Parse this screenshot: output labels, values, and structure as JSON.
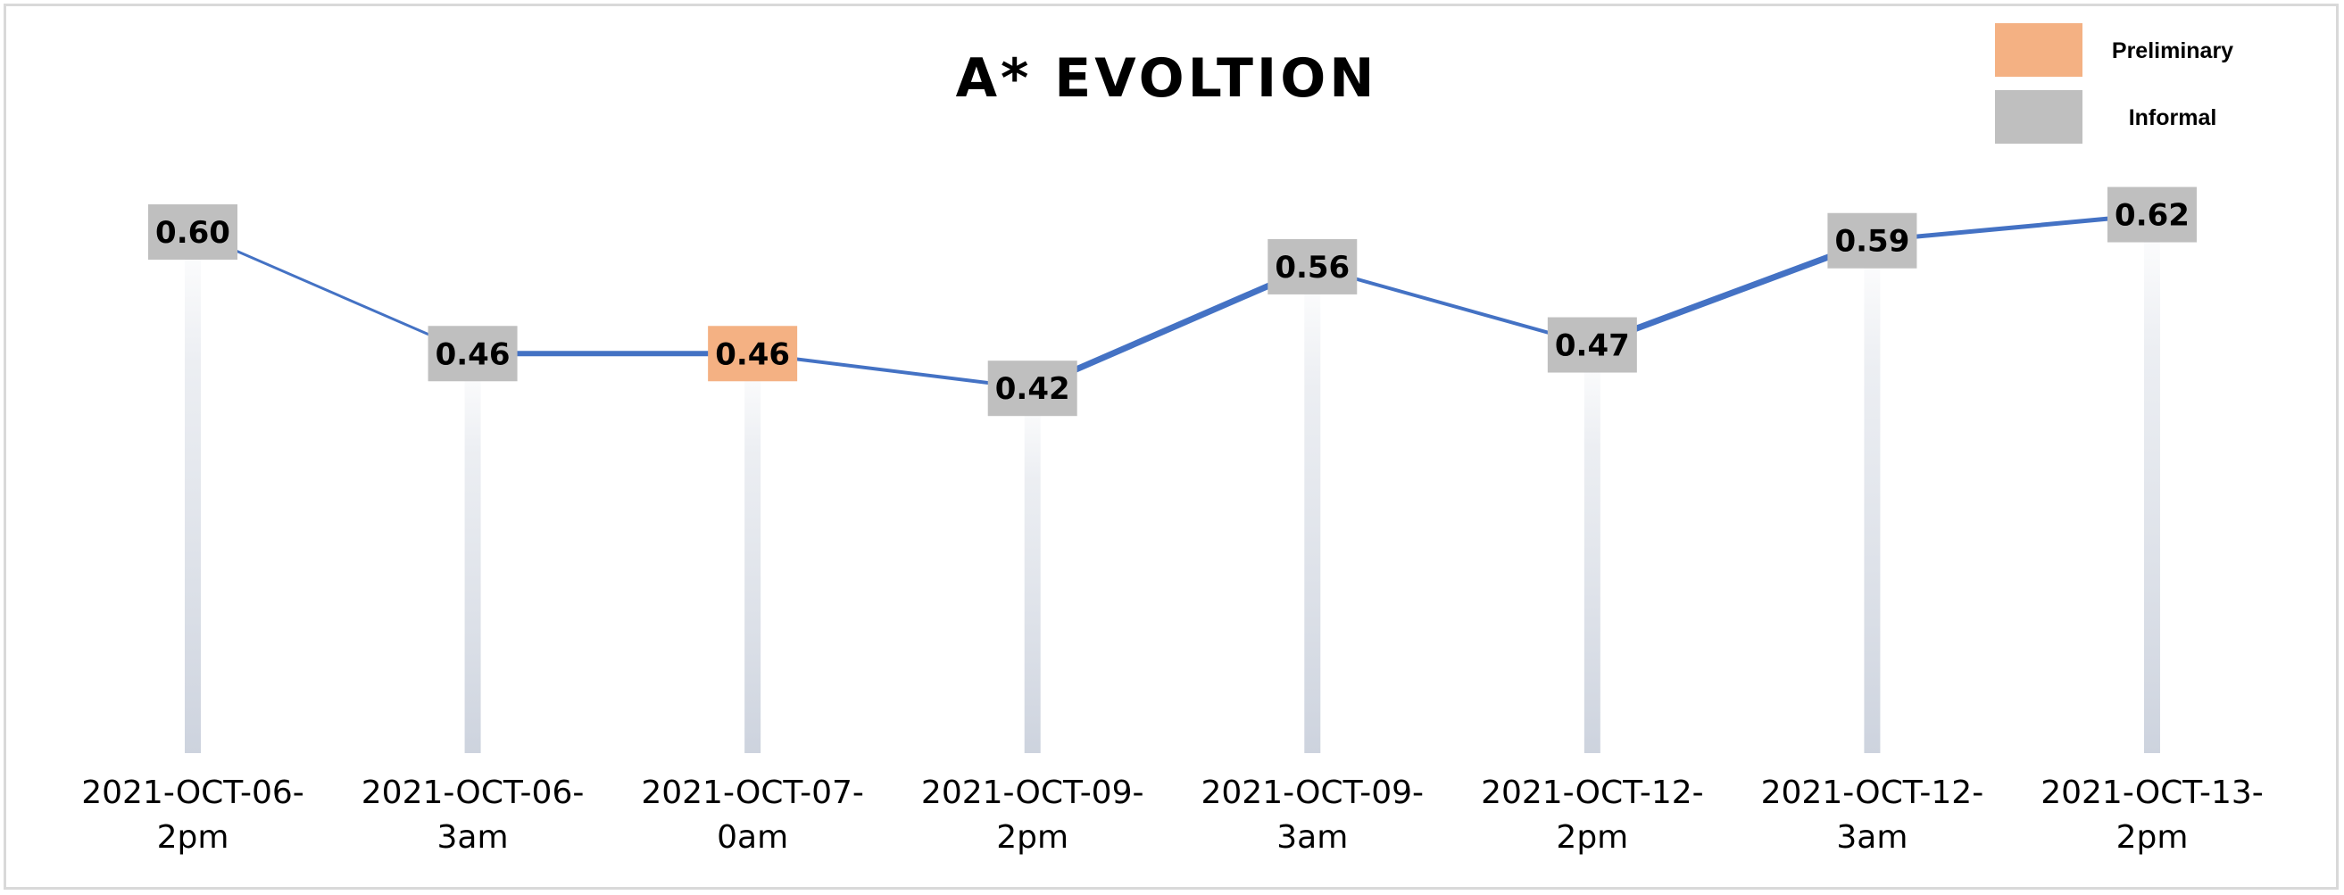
{
  "chart_data": {
    "type": "line",
    "title": "A* EVOLTION",
    "xlabel": "",
    "ylabel": "",
    "ylim": [
      0,
      0.8
    ],
    "grid": false,
    "legend_position": "top-right",
    "categories": [
      [
        "2021-OCT-06-",
        "2pm"
      ],
      [
        "2021-OCT-06-",
        "3am"
      ],
      [
        "2021-OCT-07-",
        "0am"
      ],
      [
        "2021-OCT-09-",
        "2pm"
      ],
      [
        "2021-OCT-09-",
        "3am"
      ],
      [
        "2021-OCT-12-",
        "2pm"
      ],
      [
        "2021-OCT-12-",
        "3am"
      ],
      [
        "2021-OCT-13-",
        "2pm"
      ]
    ],
    "series": [
      {
        "values": [
          0.6,
          0.46,
          0.46,
          0.42,
          0.56,
          0.47,
          0.59,
          0.62
        ],
        "labels": [
          "0.60",
          "0.46",
          "0.46",
          "0.42",
          "0.56",
          "0.47",
          "0.59",
          "0.62"
        ],
        "status": [
          "Informal",
          "Informal",
          "Preliminary",
          "Informal",
          "Informal",
          "Informal",
          "Informal",
          "Informal"
        ]
      }
    ],
    "legend": [
      {
        "name": "Preliminary",
        "color": "#f4b183"
      },
      {
        "name": "Informal",
        "color": "#bfbfbf"
      }
    ],
    "colors": {
      "line": "#4472c4",
      "drop_line": "#4472c4"
    }
  }
}
